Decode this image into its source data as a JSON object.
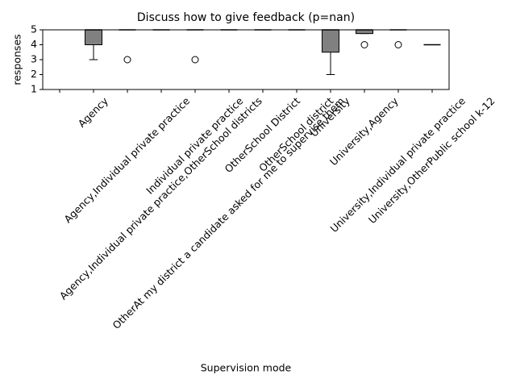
{
  "chart_data": {
    "type": "box",
    "title": "Discuss how to give feedback (p=nan)",
    "x_label": "Supervision mode",
    "y_label": "responses",
    "categories": [
      null,
      "Agency",
      "Agency,Individual private practice",
      "Agency,Individual private practice,OtherSchool districts",
      "Individual private practice",
      "OtherAt my district a candidate asked for me to supervise them",
      "OtherSchool District",
      "OtherSchool district",
      "University",
      "University,Agency",
      "University,Individual private practice",
      "University,OtherPublic school k-12"
    ],
    "boxes": [
      null,
      {
        "whislo": 3,
        "q1": 4,
        "median": 5,
        "q3": 5,
        "whishi": 5,
        "fliers": []
      },
      {
        "whislo": 5,
        "q1": 5,
        "median": 5,
        "q3": 5,
        "whishi": 5,
        "fliers": [
          3
        ]
      },
      {
        "whislo": 5,
        "q1": 5,
        "median": 5,
        "q3": 5,
        "whishi": 5,
        "fliers": []
      },
      {
        "whislo": 5,
        "q1": 5,
        "median": 5,
        "q3": 5,
        "whishi": 5,
        "fliers": [
          3
        ]
      },
      {
        "whislo": 5,
        "q1": 5,
        "median": 5,
        "q3": 5,
        "whishi": 5,
        "fliers": []
      },
      {
        "whislo": 5,
        "q1": 5,
        "median": 5,
        "q3": 5,
        "whishi": 5,
        "fliers": []
      },
      {
        "whislo": 5,
        "q1": 5,
        "median": 5,
        "q3": 5,
        "whishi": 5,
        "fliers": []
      },
      {
        "whislo": 2,
        "q1": 3.5,
        "median": 5,
        "q3": 5,
        "whishi": 5,
        "fliers": []
      },
      {
        "whislo": 4.75,
        "q1": 4.75,
        "median": 5,
        "q3": 5,
        "whishi": 5,
        "fliers": [
          4
        ]
      },
      {
        "whislo": 5,
        "q1": 5,
        "median": 5,
        "q3": 5,
        "whishi": 5,
        "fliers": [
          4
        ]
      },
      {
        "whislo": 4,
        "q1": 4,
        "median": 4,
        "q3": 4,
        "whishi": 4,
        "fliers": []
      }
    ],
    "color": "#808080",
    "ylim": [
      1,
      5
    ],
    "yticks": [
      1,
      2,
      3,
      4,
      5
    ],
    "grid": false
  }
}
